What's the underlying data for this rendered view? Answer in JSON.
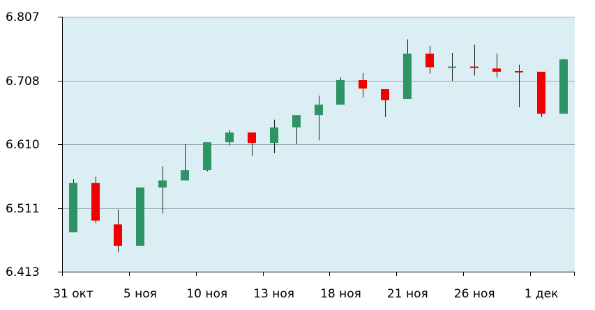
{
  "chart_data": {
    "type": "candlestick",
    "title": "",
    "xlabel": "",
    "ylabel": "",
    "ylim": [
      6.413,
      6.807
    ],
    "y_ticks": [
      "6.807",
      "6.708",
      "6.610",
      "6.511",
      "6.413"
    ],
    "y_tick_values": [
      6.807,
      6.708,
      6.61,
      6.511,
      6.413
    ],
    "x_tick_labels": [
      "31 окт",
      "5 ноя",
      "10 ноя",
      "13 ноя",
      "18 ноя",
      "21 ноя",
      "26 ноя",
      "1 дек"
    ],
    "x_tick_candle_index": [
      0,
      3,
      6,
      9,
      12,
      15,
      18,
      21
    ],
    "grid": true,
    "legend": "none",
    "colors": {
      "plot_background": "#dbeef3",
      "up": "#2e9466",
      "down": "#f20000",
      "grid": "#9aa6b0",
      "axis": "#000000"
    },
    "candles": [
      {
        "open": 6.474,
        "high": 6.556,
        "low": 6.474,
        "close": 6.55
      },
      {
        "open": 6.55,
        "high": 6.56,
        "low": 6.488,
        "close": 6.492
      },
      {
        "open": 6.486,
        "high": 6.509,
        "low": 6.443,
        "close": 6.453
      },
      {
        "open": 6.453,
        "high": 6.543,
        "low": 6.453,
        "close": 6.543
      },
      {
        "open": 6.543,
        "high": 6.576,
        "low": 6.503,
        "close": 6.554
      },
      {
        "open": 6.554,
        "high": 6.61,
        "low": 6.554,
        "close": 6.57
      },
      {
        "open": 6.57,
        "high": 6.613,
        "low": 6.568,
        "close": 6.613
      },
      {
        "open": 6.613,
        "high": 6.632,
        "low": 6.608,
        "close": 6.628
      },
      {
        "open": 6.628,
        "high": 6.628,
        "low": 6.592,
        "close": 6.612
      },
      {
        "open": 6.612,
        "high": 6.648,
        "low": 6.596,
        "close": 6.636
      },
      {
        "open": 6.636,
        "high": 6.655,
        "low": 6.61,
        "close": 6.655
      },
      {
        "open": 6.655,
        "high": 6.685,
        "low": 6.616,
        "close": 6.671
      },
      {
        "open": 6.671,
        "high": 6.713,
        "low": 6.671,
        "close": 6.709
      },
      {
        "open": 6.709,
        "high": 6.72,
        "low": 6.682,
        "close": 6.696
      },
      {
        "open": 6.695,
        "high": 6.695,
        "low": 6.652,
        "close": 6.678
      },
      {
        "open": 6.68,
        "high": 6.772,
        "low": 6.68,
        "close": 6.75
      },
      {
        "open": 6.75,
        "high": 6.762,
        "low": 6.719,
        "close": 6.729
      },
      {
        "open": 6.729,
        "high": 6.751,
        "low": 6.708,
        "close": 6.73
      },
      {
        "open": 6.73,
        "high": 6.764,
        "low": 6.716,
        "close": 6.729
      },
      {
        "open": 6.727,
        "high": 6.75,
        "low": 6.713,
        "close": 6.722
      },
      {
        "open": 6.723,
        "high": 6.733,
        "low": 6.667,
        "close": 6.722
      },
      {
        "open": 6.722,
        "high": 6.722,
        "low": 6.652,
        "close": 6.657
      },
      {
        "open": 6.657,
        "high": 6.742,
        "low": 6.657,
        "close": 6.741
      }
    ]
  }
}
